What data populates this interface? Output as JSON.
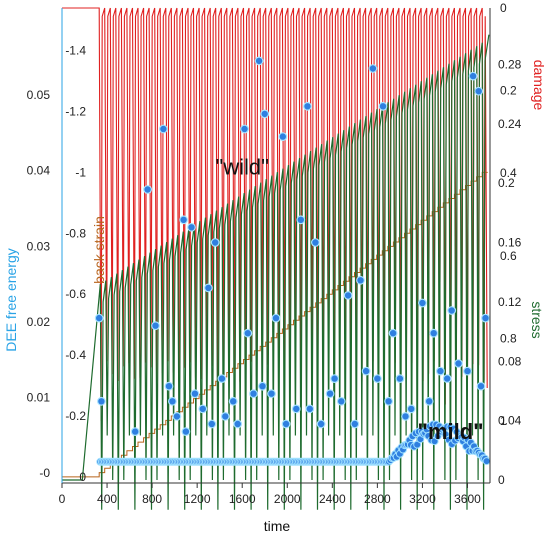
{
  "chart_data": {
    "type": "line",
    "x": {
      "label": "time",
      "ticks": [
        0,
        400,
        800,
        1200,
        1600,
        2000,
        2400,
        2800,
        3200,
        3600
      ],
      "range": [
        0,
        3800
      ]
    },
    "axes": {
      "dee": {
        "label": "DEE free energy",
        "color": "#29a3e6",
        "side": "left-outer",
        "ticks": [
          0,
          0.01,
          0.02,
          0.03,
          0.04,
          0.05
        ],
        "tick_labels": [
          "-0",
          "0.01",
          "0.02",
          "0.03",
          "0.04",
          "0.05"
        ],
        "range": [
          -0.0013,
          0.0615
        ]
      },
      "back_strain": {
        "label": "back strain",
        "color": "#b8631b",
        "side": "left-inner",
        "ticks": [
          0,
          -0.2,
          -0.4,
          -0.6,
          -0.8,
          -1,
          -1.2,
          -1.4
        ],
        "tick_labels": [
          "0",
          "-0.2",
          "-0.4",
          "-0.6",
          "-0.8",
          "-1",
          "-1.2",
          "-1.4"
        ],
        "range": [
          0.02,
          -1.54
        ]
      },
      "damage": {
        "label": "damage",
        "color": "#e02020",
        "side": "right-outer",
        "ticks": [
          0,
          0.2,
          0.4,
          0.6,
          0.8,
          1
        ],
        "tick_labels": [
          "0",
          "0.2",
          "0.4",
          "0.6",
          "0.8",
          "1"
        ],
        "range": [
          0,
          1.15
        ]
      },
      "stress": {
        "label": "stress",
        "color": "#1e6b2e",
        "side": "right-inner",
        "ticks": [
          0,
          0.04,
          0.08,
          0.12,
          0.16,
          0.2,
          0.24,
          0.28
        ],
        "tick_labels": [
          "0",
          "0.04",
          "0.08",
          "0.12",
          "0.16",
          "0.2",
          "0.24",
          "0.28"
        ],
        "range": [
          -0.002,
          0.318
        ]
      }
    },
    "series": [
      {
        "name": "damage",
        "color": "#e02020",
        "note": "~sawtooth 0 to ~1 with ~70 cycles from t≈330 to t≈3780"
      },
      {
        "name": "stress",
        "color": "#1e6b2e",
        "note": "linear rise 0 to 0.132 by t≈350 then serrated climb to ~0.30 at t≈3780"
      },
      {
        "name": "back strain",
        "color": "#b8631b",
        "note": "staircase 0 to -1 over t≈330 to t≈3780"
      },
      {
        "name": "DEE free energy",
        "color": "#29a3e6",
        "kind": "scatter"
      }
    ],
    "dee_points": [
      [
        330,
        0.0205
      ],
      [
        350,
        0.0095
      ],
      [
        650,
        0.0055
      ],
      [
        760,
        0.0375
      ],
      [
        830,
        0.0195
      ],
      [
        900,
        0.0455
      ],
      [
        950,
        0.0115
      ],
      [
        980,
        0.0095
      ],
      [
        1020,
        0.0075
      ],
      [
        1080,
        0.0335
      ],
      [
        1100,
        0.0055
      ],
      [
        1150,
        0.0325
      ],
      [
        1180,
        0.0105
      ],
      [
        1250,
        0.0085
      ],
      [
        1300,
        0.0245
      ],
      [
        1330,
        0.0065
      ],
      [
        1360,
        0.0305
      ],
      [
        1420,
        0.0125
      ],
      [
        1450,
        0.0075
      ],
      [
        1520,
        0.0095
      ],
      [
        1560,
        0.0065
      ],
      [
        1620,
        0.0455
      ],
      [
        1650,
        0.0185
      ],
      [
        1700,
        0.0105
      ],
      [
        1750,
        0.0545
      ],
      [
        1780,
        0.0115
      ],
      [
        1800,
        0.0475
      ],
      [
        1860,
        0.0105
      ],
      [
        1900,
        0.0205
      ],
      [
        1960,
        0.0445
      ],
      [
        1990,
        0.0065
      ],
      [
        2080,
        0.0085
      ],
      [
        2120,
        0.0335
      ],
      [
        2180,
        0.0485
      ],
      [
        2200,
        0.0085
      ],
      [
        2250,
        0.0305
      ],
      [
        2300,
        0.0065
      ],
      [
        2380,
        0.0105
      ],
      [
        2420,
        0.0125
      ],
      [
        2480,
        0.0095
      ],
      [
        2540,
        0.0235
      ],
      [
        2600,
        0.0065
      ],
      [
        2650,
        0.0255
      ],
      [
        2700,
        0.0135
      ],
      [
        2760,
        0.0535
      ],
      [
        2800,
        0.0125
      ],
      [
        2850,
        0.0485
      ],
      [
        2900,
        0.0095
      ],
      [
        2940,
        0.0185
      ],
      [
        3000,
        0.0125
      ],
      [
        3050,
        0.0075
      ],
      [
        3100,
        0.0085
      ],
      [
        3200,
        0.0225
      ],
      [
        3260,
        0.0095
      ],
      [
        3300,
        0.0185
      ],
      [
        3360,
        0.0135
      ],
      [
        3420,
        0.0125
      ],
      [
        3460,
        0.0215
      ],
      [
        3520,
        0.0145
      ],
      [
        3600,
        0.0135
      ],
      [
        3650,
        0.0525
      ],
      [
        3700,
        0.0505
      ],
      [
        3720,
        0.0115
      ],
      [
        3760,
        0.0205
      ]
    ],
    "annotations": [
      {
        "text": "\"wild\"",
        "x": 1600,
        "dee": 0.0395
      },
      {
        "text": "\"mild\"",
        "x": 3450,
        "dee": 0.0045
      }
    ]
  }
}
